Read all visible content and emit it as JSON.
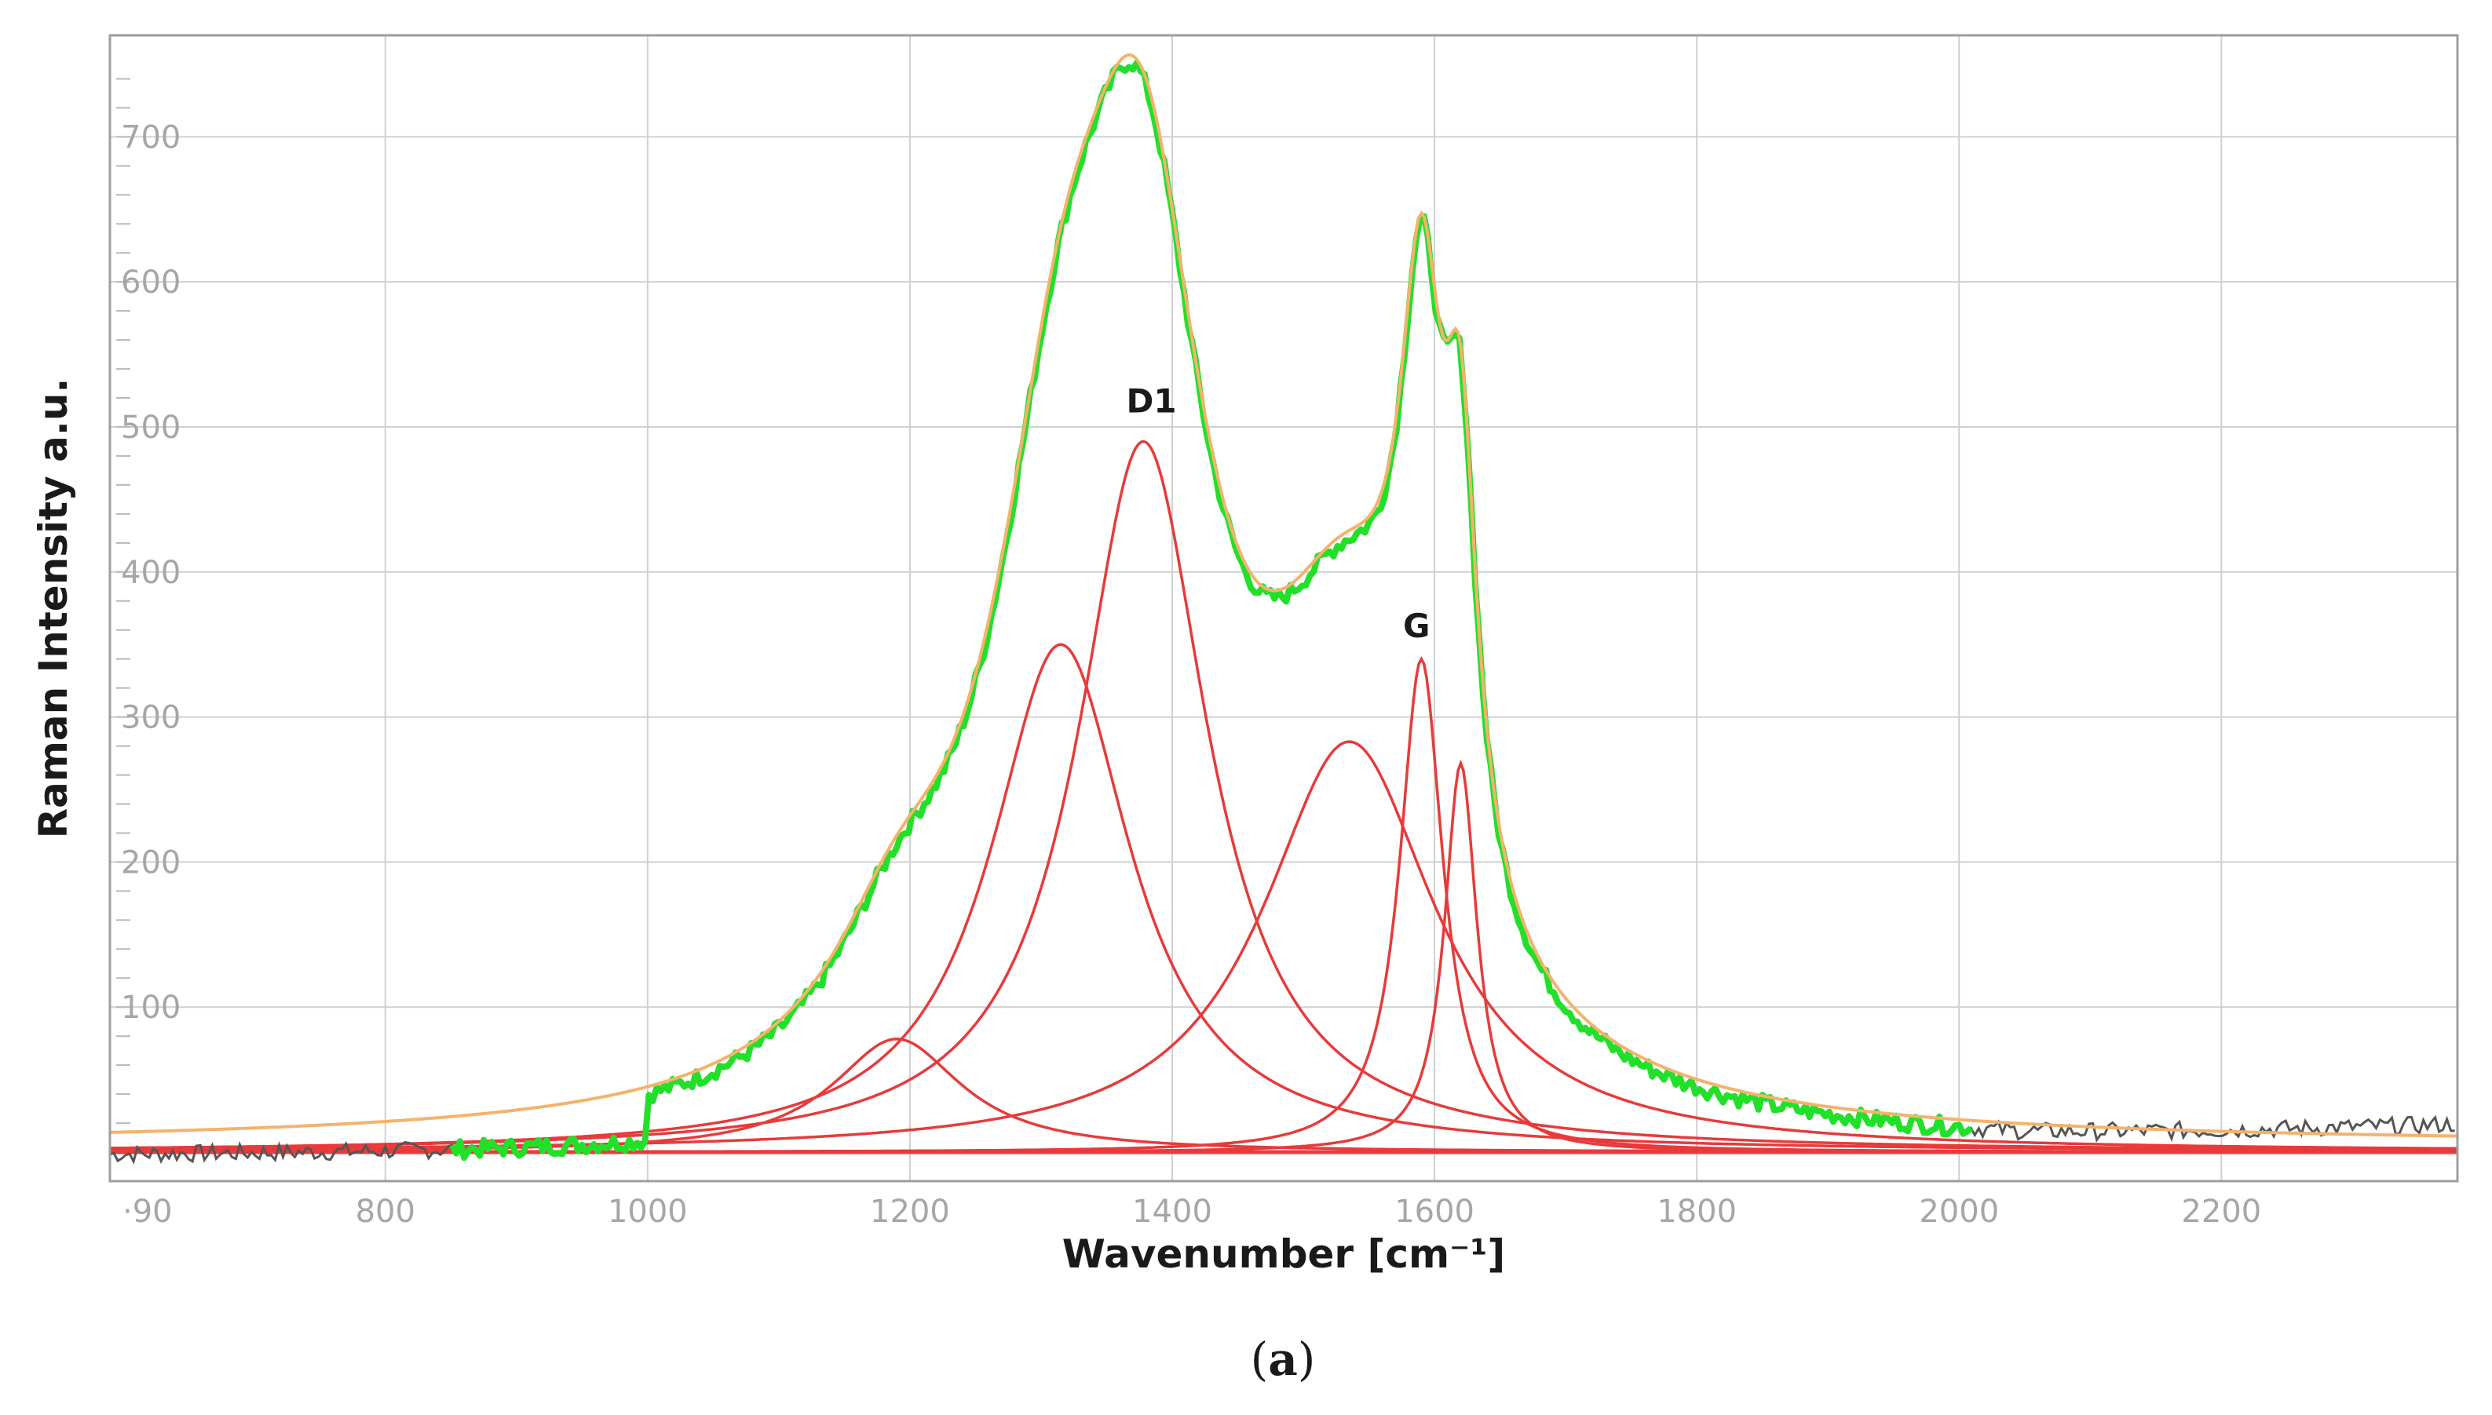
{
  "chart_data": {
    "type": "line",
    "xlabel": "Wavenumber [cm⁻¹]",
    "ylabel": "Raman Intensity a.u.",
    "caption_open": "(",
    "caption_letter": "a",
    "caption_close": ")",
    "xlim": [
      590,
      2380
    ],
    "ylim": [
      -20,
      770
    ],
    "x_ticks": [
      800,
      1000,
      1200,
      1400,
      1600,
      1800,
      2000,
      2200
    ],
    "x_tick_labels": [
      "·90",
      "800",
      "1000",
      "1200",
      "1400",
      "1600",
      "1800",
      "2000",
      "2200"
    ],
    "x_first_tick": 590,
    "y_ticks": [
      100,
      200,
      300,
      400,
      500,
      600,
      700
    ],
    "y_tick_labels": [
      "100",
      "200",
      "300",
      "400",
      "500",
      "600",
      "700"
    ],
    "grid": true,
    "colors": {
      "measured": "#22e02a",
      "fit": "#f4b26b",
      "components": "#e83a3a",
      "baseline_noise": "#555555",
      "grid": "#d0d0d0",
      "frame": "#9e9e9e"
    },
    "components": [
      {
        "center": 1190,
        "amplitude": 78,
        "hwhm": 60
      },
      {
        "center": 1315,
        "amplitude": 350,
        "hwhm": 65
      },
      {
        "center": 1378,
        "amplitude": 490,
        "hwhm": 60
      },
      {
        "center": 1535,
        "amplitude": 283,
        "hwhm": 80
      },
      {
        "center": 1590,
        "amplitude": 340,
        "hwhm": 20
      },
      {
        "center": 1620,
        "amplitude": 268,
        "hwhm": 15
      }
    ],
    "annotations": [
      {
        "text": "D1",
        "x": 1365,
        "y": 510
      },
      {
        "text": "G",
        "x": 1576,
        "y": 355
      }
    ]
  }
}
